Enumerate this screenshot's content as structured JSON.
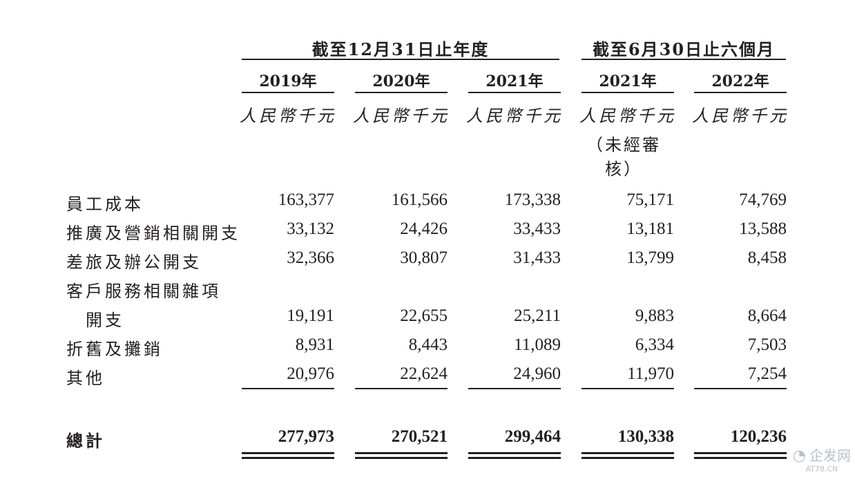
{
  "header": {
    "group_year": "截至12月31日止年度",
    "group_half": "截至6月30日止六個月"
  },
  "columns": [
    {
      "year": "2019年",
      "unit": "人民幣千元",
      "note": ""
    },
    {
      "year": "2020年",
      "unit": "人民幣千元",
      "note": ""
    },
    {
      "year": "2021年",
      "unit": "人民幣千元",
      "note": ""
    },
    {
      "year": "2021年",
      "unit": "人民幣千元",
      "note": "（未經審核）"
    },
    {
      "year": "2022年",
      "unit": "人民幣千元",
      "note": ""
    }
  ],
  "rows": [
    {
      "label": "員工成本",
      "values": [
        "163,377",
        "161,566",
        "173,338",
        "75,171",
        "74,769"
      ]
    },
    {
      "label": "推廣及營銷相關開支",
      "values": [
        "33,132",
        "24,426",
        "33,433",
        "13,181",
        "13,588"
      ]
    },
    {
      "label": "差旅及辦公開支",
      "values": [
        "32,366",
        "30,807",
        "31,433",
        "13,799",
        "8,458"
      ]
    },
    {
      "label": "客戶服務相關雜項",
      "label2": "開支",
      "values": [
        "19,191",
        "22,655",
        "25,211",
        "9,883",
        "8,664"
      ]
    },
    {
      "label": "折舊及攤銷",
      "values": [
        "8,931",
        "8,443",
        "11,089",
        "6,334",
        "7,503"
      ]
    },
    {
      "label": "其他",
      "values": [
        "20,976",
        "22,624",
        "24,960",
        "11,970",
        "7,254"
      ]
    }
  ],
  "total": {
    "label": "總計",
    "values": [
      "277,973",
      "270,521",
      "299,464",
      "130,338",
      "120,236"
    ]
  },
  "watermark": {
    "logo": "◔",
    "name": "企发网",
    "domain": "AT78.CN"
  }
}
